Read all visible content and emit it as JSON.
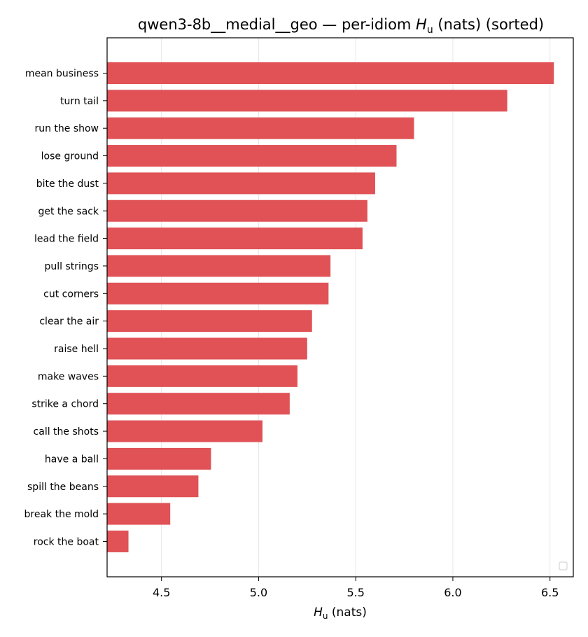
{
  "chart_data": {
    "type": "bar",
    "orientation": "horizontal",
    "sorted": "descending",
    "title_prefix": "qwen3-8b__medial__geo — per-idiom ",
    "title_symbol": "H",
    "title_subscript": "u",
    "title_suffix": " (nats) (sorted)",
    "xlabel_symbol": "H",
    "xlabel_subscript": "u",
    "xlabel_suffix": " (nats)",
    "ylabel": "",
    "categories": [
      "mean business",
      "turn tail",
      "run the show",
      "lose ground",
      "bite the dust",
      "get the sack",
      "lead the field",
      "pull strings",
      "cut corners",
      "clear the air",
      "raise hell",
      "make waves",
      "strike a chord",
      "call the shots",
      "have a ball",
      "spill the beans",
      "break the mold",
      "rock the boat"
    ],
    "values": [
      6.52,
      6.28,
      5.8,
      5.71,
      5.6,
      5.56,
      5.535,
      5.37,
      5.36,
      5.275,
      5.25,
      5.2,
      5.16,
      5.02,
      4.755,
      4.69,
      4.545,
      4.33
    ],
    "xlim": [
      4.22,
      6.62
    ],
    "xticks": [
      4.5,
      5.0,
      5.5,
      6.0,
      6.5
    ],
    "xtick_labels": [
      "4.5",
      "5.0",
      "5.5",
      "6.0",
      "6.5"
    ],
    "grid": "vertical",
    "legend": "lower-right (empty)",
    "bar_color": "#e05256",
    "grid_color": "#e6e6e6"
  }
}
